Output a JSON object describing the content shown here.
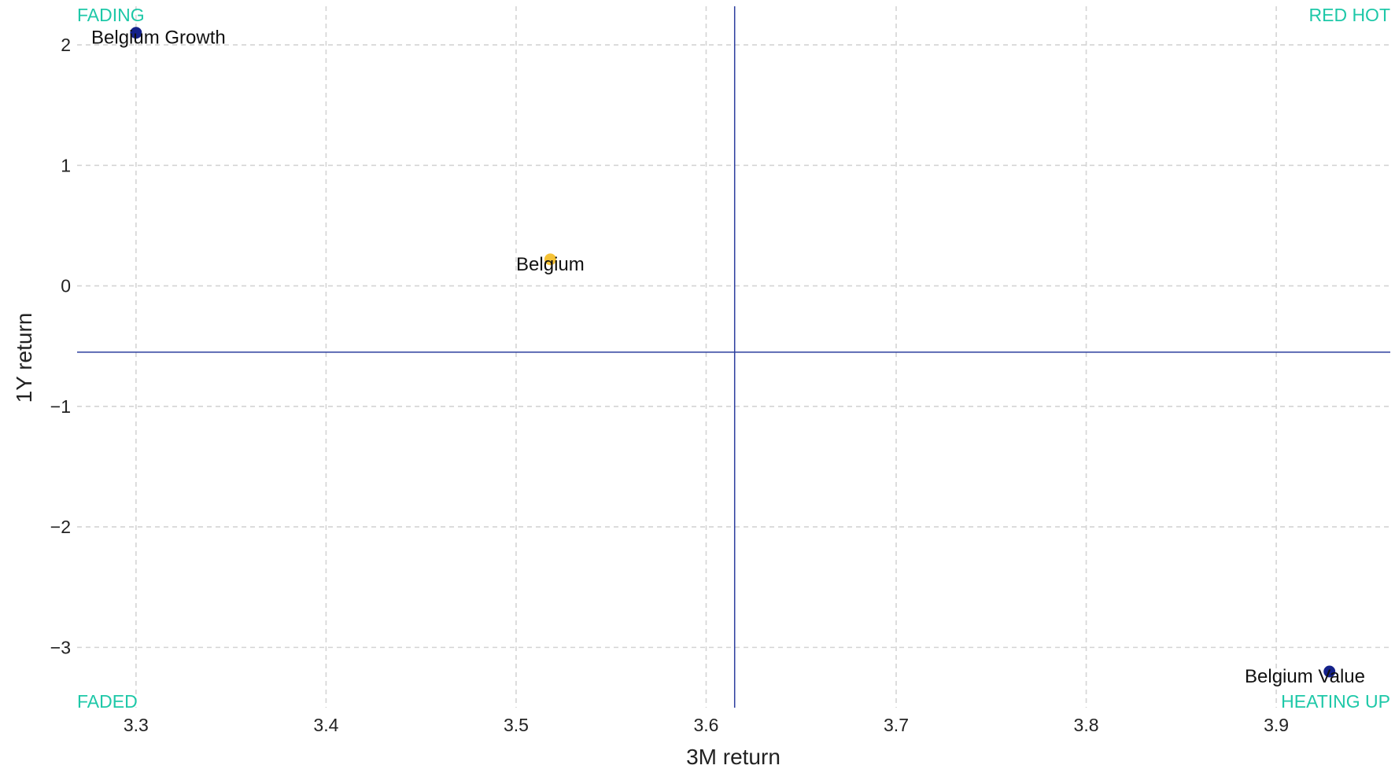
{
  "chart_data": {
    "type": "scatter",
    "title": "",
    "xlabel": "3M return",
    "ylabel": "1Y return",
    "xlim": [
      3.269,
      3.96
    ],
    "ylim": [
      -3.5,
      2.32
    ],
    "xticks": [
      3.3,
      3.4,
      3.5,
      3.6,
      3.7,
      3.8,
      3.9
    ],
    "yticks": [
      2,
      1,
      0,
      -1,
      -2,
      -3
    ],
    "x_tick_labels": [
      "3.3",
      "3.4",
      "3.5",
      "3.6",
      "3.7",
      "3.8",
      "3.9"
    ],
    "y_tick_labels": [
      "2",
      "1",
      "0",
      "−1",
      "−2",
      "−3"
    ],
    "grid": true,
    "reference_lines": {
      "x": 3.615,
      "y": -0.55
    },
    "points": [
      {
        "label": "Belgium Growth",
        "x": 3.3,
        "y": 2.1,
        "color": "#14218a"
      },
      {
        "label": "Belgium",
        "x": 3.518,
        "y": 0.22,
        "color": "#f5c236"
      },
      {
        "label": "Belgium Value",
        "x": 3.928,
        "y": -3.2,
        "color": "#14218a"
      }
    ],
    "quadrant_labels": {
      "top_left": "FADING",
      "top_right": "RED HOT",
      "bottom_left": "FADED",
      "bottom_right": "HEATING UP"
    }
  },
  "colors": {
    "quadrant_text": "#1ec8a8",
    "reference_line": "#2c3e9e",
    "grid": "#d4d4d4"
  }
}
